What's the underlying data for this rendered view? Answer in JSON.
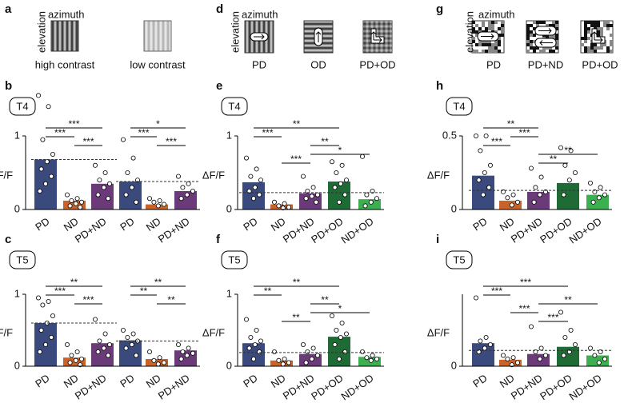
{
  "stimulus_panels": [
    {
      "panel": "a",
      "axis_labels": [
        "azimuth",
        "elevation"
      ],
      "labels": [
        "high contrast",
        "low contrast"
      ]
    },
    {
      "panel": "d",
      "axis_labels": [
        "azimuth",
        "elevation"
      ],
      "labels": [
        "PD",
        "OD",
        "PD+OD"
      ]
    },
    {
      "panel": "g",
      "axis_labels": [
        "azimuth",
        "elevation"
      ],
      "labels": [
        "PD",
        "PD+ND",
        "PD+OD"
      ]
    }
  ],
  "chart_data": [
    {
      "type": "bar",
      "panel": "b",
      "tag": "T4",
      "ylabel": "ΔF/F",
      "categories": [
        "PD",
        "ND",
        "PD+ND",
        "PD",
        "ND",
        "PD+ND"
      ],
      "colors": [
        "#3a4a7c",
        "#c8642a",
        "#6b3a78",
        "#3a4a7c",
        "#c8642a",
        "#6b3a78"
      ],
      "values": [
        0.68,
        0.12,
        0.35,
        0.38,
        0.07,
        0.25
      ],
      "points": [
        [
          1.55,
          1.4,
          0.95,
          0.75,
          0.65,
          0.55,
          0.45,
          0.35,
          0.25
        ],
        [
          0.2,
          0.15,
          0.12,
          0.1,
          0.08,
          0.05,
          0.03
        ],
        [
          0.6,
          0.5,
          0.4,
          0.35,
          0.3,
          0.2,
          0.15
        ],
        [
          0.95,
          0.7,
          0.5,
          0.4,
          0.3,
          0.2,
          0.1
        ],
        [
          0.15,
          0.12,
          0.1,
          0.07,
          0.05
        ],
        [
          0.45,
          0.35,
          0.3,
          0.25,
          0.2,
          0.15
        ]
      ],
      "dashed": [
        {
          "value": 0.68,
          "span": [
            0,
            2
          ]
        },
        {
          "value": 0.38,
          "span": [
            3,
            5
          ]
        }
      ],
      "significance": [
        {
          "pair": [
            0,
            2
          ],
          "label": "***"
        },
        {
          "pair": [
            0,
            1
          ],
          "label": "***"
        },
        {
          "pair": [
            1,
            2
          ],
          "label": "***"
        },
        {
          "pair": [
            3,
            5
          ],
          "label": "*"
        },
        {
          "pair": [
            3,
            4
          ],
          "label": "***"
        },
        {
          "pair": [
            4,
            5
          ],
          "label": "***"
        }
      ],
      "ylim": [
        0,
        1
      ],
      "yticks": [
        0,
        1
      ]
    },
    {
      "type": "bar",
      "panel": "c",
      "tag": "T5",
      "ylabel": "ΔF/F",
      "categories": [
        "PD",
        "ND",
        "PD+ND",
        "PD",
        "ND",
        "PD+ND"
      ],
      "colors": [
        "#3a4a7c",
        "#c8642a",
        "#6b3a78",
        "#3a4a7c",
        "#c8642a",
        "#6b3a78"
      ],
      "values": [
        0.6,
        0.12,
        0.32,
        0.36,
        0.1,
        0.22
      ],
      "points": [
        [
          0.95,
          0.9,
          0.85,
          0.7,
          0.6,
          0.5,
          0.4,
          0.3,
          0.2
        ],
        [
          0.3,
          0.2,
          0.15,
          0.1,
          0.08,
          0.05,
          0.02
        ],
        [
          0.65,
          0.45,
          0.35,
          0.3,
          0.25,
          0.2,
          0.15
        ],
        [
          0.5,
          0.45,
          0.4,
          0.35,
          0.3,
          0.25,
          0.15
        ],
        [
          0.2,
          0.12,
          0.08,
          0.05,
          0.03
        ],
        [
          0.3,
          0.25,
          0.2,
          0.18,
          0.15,
          0.1
        ]
      ],
      "dashed": [
        {
          "value": 0.6,
          "span": [
            0,
            2
          ]
        },
        {
          "value": 0.35,
          "span": [
            3,
            5
          ]
        }
      ],
      "significance": [
        {
          "pair": [
            0,
            2
          ],
          "label": "**"
        },
        {
          "pair": [
            0,
            1
          ],
          "label": "***"
        },
        {
          "pair": [
            1,
            2
          ],
          "label": "***"
        },
        {
          "pair": [
            3,
            5
          ],
          "label": "**"
        },
        {
          "pair": [
            3,
            4
          ],
          "label": "**"
        },
        {
          "pair": [
            4,
            5
          ],
          "label": "**"
        }
      ],
      "ylim": [
        0,
        1
      ],
      "yticks": [
        0,
        1
      ]
    },
    {
      "type": "bar",
      "panel": "e",
      "tag": "T4",
      "ylabel": "ΔF/F",
      "categories": [
        "PD",
        "ND",
        "PD+ND",
        "PD+OD",
        "ND+OD"
      ],
      "colors": [
        "#3a4a7c",
        "#c8642a",
        "#6b3a78",
        "#1e6b36",
        "#3cb050"
      ],
      "values": [
        0.37,
        0.07,
        0.22,
        0.38,
        0.14
      ],
      "points": [
        [
          0.7,
          0.55,
          0.45,
          0.4,
          0.3,
          0.25,
          0.2,
          0.15
        ],
        [
          0.1,
          0.08,
          0.05,
          0.03,
          0.02
        ],
        [
          0.45,
          0.3,
          0.25,
          0.2,
          0.18,
          0.15,
          0.1
        ],
        [
          0.65,
          0.6,
          0.5,
          0.4,
          0.35,
          0.3,
          0.2,
          0.1
        ],
        [
          0.72,
          0.25,
          0.2,
          0.15,
          0.1,
          0.05
        ]
      ],
      "dashed": [
        {
          "value": 0.23,
          "span": [
            0,
            4
          ]
        }
      ],
      "significance": [
        {
          "pair": [
            0,
            3
          ],
          "label": "**"
        },
        {
          "pair": [
            0,
            1
          ],
          "label": "***"
        },
        {
          "pair": [
            2,
            3
          ],
          "label": "**"
        },
        {
          "pair": [
            2,
            4
          ],
          "label": "*"
        },
        {
          "pair": [
            1,
            2
          ],
          "label": "***"
        }
      ],
      "ylim": [
        0,
        1
      ],
      "yticks": [
        0,
        1
      ]
    },
    {
      "type": "bar",
      "panel": "f",
      "tag": "T5",
      "ylabel": "ΔF/F",
      "categories": [
        "PD",
        "ND",
        "PD+ND",
        "PD+OD",
        "ND+OD"
      ],
      "colors": [
        "#3a4a7c",
        "#c8642a",
        "#6b3a78",
        "#1e6b36",
        "#3cb050"
      ],
      "values": [
        0.32,
        0.08,
        0.17,
        0.41,
        0.13
      ],
      "points": [
        [
          0.65,
          0.5,
          0.4,
          0.35,
          0.3,
          0.25,
          0.2,
          0.1
        ],
        [
          0.2,
          0.1,
          0.08,
          0.05,
          0.03
        ],
        [
          0.3,
          0.25,
          0.2,
          0.15,
          0.1,
          0.05
        ],
        [
          0.7,
          0.6,
          0.5,
          0.45,
          0.4,
          0.3,
          0.2,
          0.1
        ],
        [
          0.2,
          0.15,
          0.12,
          0.1,
          0.08
        ]
      ],
      "dashed": [
        {
          "value": 0.19,
          "span": [
            0,
            4
          ]
        }
      ],
      "significance": [
        {
          "pair": [
            0,
            3
          ],
          "label": "**"
        },
        {
          "pair": [
            0,
            1
          ],
          "label": "**"
        },
        {
          "pair": [
            2,
            3
          ],
          "label": "**"
        },
        {
          "pair": [
            2,
            4
          ],
          "label": "*"
        },
        {
          "pair": [
            1,
            2
          ],
          "label": "**"
        }
      ],
      "ylim": [
        0,
        1
      ],
      "yticks": [
        0,
        1
      ]
    },
    {
      "type": "bar",
      "panel": "h",
      "tag": "T4",
      "ylabel": "ΔF/F",
      "categories": [
        "PD",
        "ND",
        "PD+ND",
        "PD+OD",
        "ND+OD"
      ],
      "colors": [
        "#3a4a7c",
        "#c8642a",
        "#6b3a78",
        "#1e6b36",
        "#3cb050"
      ],
      "values": [
        0.23,
        0.06,
        0.12,
        0.18,
        0.1
      ],
      "points": [
        [
          0.5,
          0.5,
          0.4,
          0.3,
          0.25,
          0.2,
          0.15,
          0.1
        ],
        [
          0.12,
          0.1,
          0.08,
          0.05,
          0.03
        ],
        [
          0.28,
          0.22,
          0.15,
          0.12,
          0.1,
          0.05
        ],
        [
          0.42,
          0.4,
          0.3,
          0.25,
          0.2,
          0.1
        ],
        [
          0.18,
          0.15,
          0.12,
          0.1,
          0.08,
          0.05
        ]
      ],
      "dashed": [
        {
          "value": 0.13,
          "span": [
            0,
            4
          ]
        }
      ],
      "significance": [
        {
          "pair": [
            0,
            2
          ],
          "label": "**"
        },
        {
          "pair": [
            1,
            2
          ],
          "label": "***"
        },
        {
          "pair": [
            0,
            1
          ],
          "label": "***"
        },
        {
          "pair": [
            2,
            4
          ],
          "label": "**"
        },
        {
          "pair": [
            2,
            3
          ],
          "label": "**"
        }
      ],
      "ylim": [
        0,
        0.5
      ],
      "yticks": [
        0,
        0.5
      ]
    },
    {
      "type": "bar",
      "panel": "i",
      "tag": "T5",
      "ylabel": "ΔF/F",
      "categories": [
        "PD",
        "ND",
        "PD+ND",
        "PD+OD",
        "ND+OD"
      ],
      "colors": [
        "#3a4a7c",
        "#c8642a",
        "#6b3a78",
        "#1e6b36",
        "#3cb050"
      ],
      "values": [
        0.32,
        0.09,
        0.17,
        0.27,
        0.15
      ],
      "points": [
        [
          0.95,
          0.4,
          0.35,
          0.3,
          0.25,
          0.2
        ],
        [
          0.15,
          0.12,
          0.1,
          0.05,
          0.02
        ],
        [
          0.55,
          0.25,
          0.2,
          0.15,
          0.1
        ],
        [
          0.75,
          0.5,
          0.4,
          0.3,
          0.2,
          0.15
        ],
        [
          0.25,
          0.2,
          0.15,
          0.1,
          0.05
        ]
      ],
      "dashed": [
        {
          "value": 0.22,
          "span": [
            0,
            4
          ]
        }
      ],
      "significance": [
        {
          "pair": [
            0,
            3
          ],
          "label": "***"
        },
        {
          "pair": [
            0,
            1
          ],
          "label": "***"
        },
        {
          "pair": [
            2,
            4
          ],
          "label": "**"
        },
        {
          "pair": [
            1,
            2
          ],
          "label": "***"
        },
        {
          "pair": [
            2,
            3
          ],
          "label": "***"
        }
      ],
      "ylim": [
        0,
        1
      ],
      "yticks": [
        0
      ]
    }
  ]
}
